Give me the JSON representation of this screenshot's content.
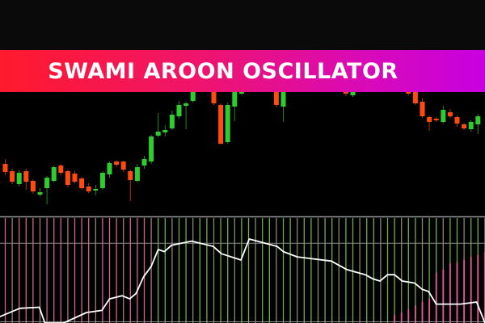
{
  "banner": {
    "title": "SWAMI AROON OSCILLATOR"
  },
  "colors": {
    "bull": "#2ecc2e",
    "bear": "#ff4a10",
    "line": "#ffffff",
    "hist_bull": "#7cc25a",
    "hist_bear": "#e8709f",
    "banner_start": "#ff1a2c",
    "banner_end": "#c800e0"
  },
  "chart_data": [
    {
      "type": "candlestick",
      "title": "",
      "candles": [
        {
          "i": 0,
          "o": 62,
          "c": 52,
          "h": 68,
          "l": 48
        },
        {
          "i": 1,
          "o": 53,
          "c": 40,
          "h": 56,
          "l": 37
        },
        {
          "i": 2,
          "o": 37,
          "c": 51,
          "h": 54,
          "l": 34
        },
        {
          "i": 3,
          "o": 53,
          "c": 40,
          "h": 56,
          "l": 30
        },
        {
          "i": 4,
          "o": 41,
          "c": 28,
          "h": 43,
          "l": 25
        },
        {
          "i": 5,
          "o": 24,
          "c": 27,
          "h": 32,
          "l": 22
        },
        {
          "i": 6,
          "o": 32,
          "c": 45,
          "h": 47,
          "l": 12
        },
        {
          "i": 7,
          "o": 41,
          "c": 58,
          "h": 60,
          "l": 39
        },
        {
          "i": 8,
          "o": 60,
          "c": 51,
          "h": 62,
          "l": 48
        },
        {
          "i": 9,
          "o": 53,
          "c": 36,
          "h": 55,
          "l": 33
        },
        {
          "i": 10,
          "o": 50,
          "c": 40,
          "h": 53,
          "l": 38
        },
        {
          "i": 11,
          "o": 44,
          "c": 32,
          "h": 46,
          "l": 30
        },
        {
          "i": 12,
          "o": 34,
          "c": 28,
          "h": 38,
          "l": 26
        },
        {
          "i": 13,
          "o": 29,
          "c": 31,
          "h": 36,
          "l": 23
        },
        {
          "i": 14,
          "o": 32,
          "c": 51,
          "h": 53,
          "l": 30
        },
        {
          "i": 15,
          "o": 49,
          "c": 63,
          "h": 65,
          "l": 45
        },
        {
          "i": 16,
          "o": 65,
          "c": 61,
          "h": 67,
          "l": 58
        },
        {
          "i": 17,
          "o": 65,
          "c": 55,
          "h": 66,
          "l": 52
        },
        {
          "i": 18,
          "o": 53,
          "c": 42,
          "h": 55,
          "l": 16
        },
        {
          "i": 19,
          "o": 41,
          "c": 58,
          "h": 62,
          "l": 39
        },
        {
          "i": 20,
          "o": 60,
          "c": 68,
          "h": 72,
          "l": 56
        },
        {
          "i": 21,
          "o": 65,
          "c": 96,
          "h": 98,
          "l": 62
        },
        {
          "i": 22,
          "o": 97,
          "c": 102,
          "h": 125,
          "l": 95
        },
        {
          "i": 23,
          "o": 101,
          "c": 104,
          "h": 110,
          "l": 96
        },
        {
          "i": 24,
          "o": 106,
          "c": 123,
          "h": 128,
          "l": 104
        },
        {
          "i": 25,
          "o": 121,
          "c": 135,
          "h": 140,
          "l": 118
        },
        {
          "i": 26,
          "o": 134,
          "c": 137,
          "h": 139,
          "l": 105
        },
        {
          "i": 27,
          "o": 140,
          "c": 151,
          "h": 160,
          "l": 138
        },
        {
          "i": 30,
          "o": 151,
          "c": 137,
          "h": 160,
          "l": 135
        },
        {
          "i": 31,
          "o": 135,
          "c": 87,
          "h": 137,
          "l": 86
        },
        {
          "i": 32,
          "o": 89,
          "c": 135,
          "h": 138,
          "l": 87
        },
        {
          "i": 33,
          "o": 133,
          "c": 151,
          "h": 160,
          "l": 115
        },
        {
          "i": 34,
          "o": 149,
          "c": 151,
          "h": 160,
          "l": 147
        },
        {
          "i": 39,
          "o": 151,
          "c": 135,
          "h": 160,
          "l": 132
        },
        {
          "i": 40,
          "o": 133,
          "c": 151,
          "h": 160,
          "l": 114
        },
        {
          "i": 49,
          "o": 151,
          "c": 149,
          "h": 160,
          "l": 146
        },
        {
          "i": 50,
          "o": 147,
          "c": 151,
          "h": 160,
          "l": 145
        },
        {
          "i": 58,
          "o": 151,
          "c": 149,
          "h": 160,
          "l": 147
        },
        {
          "i": 59,
          "o": 151,
          "c": 137,
          "h": 160,
          "l": 135
        },
        {
          "i": 60,
          "o": 139,
          "c": 121,
          "h": 143,
          "l": 119
        },
        {
          "i": 61,
          "o": 120,
          "c": 114,
          "h": 122,
          "l": 103
        },
        {
          "i": 62,
          "o": 118,
          "c": 116,
          "h": 120,
          "l": 114
        },
        {
          "i": 63,
          "o": 114,
          "c": 129,
          "h": 134,
          "l": 112
        },
        {
          "i": 64,
          "o": 126,
          "c": 121,
          "h": 130,
          "l": 119
        },
        {
          "i": 65,
          "o": 120,
          "c": 112,
          "h": 122,
          "l": 108
        },
        {
          "i": 66,
          "o": 111,
          "c": 106,
          "h": 113,
          "l": 104
        },
        {
          "i": 67,
          "o": 105,
          "c": 114,
          "h": 116,
          "l": 102
        },
        {
          "i": 68,
          "o": 111,
          "c": 121,
          "h": 124,
          "l": 99
        }
      ]
    },
    {
      "type": "line",
      "title": "",
      "ylim": [
        0,
        100
      ],
      "level": 76,
      "histogram_bull_until_index": 22,
      "bars": 70,
      "bear_histogram": [
        {
          "i": 56,
          "v": 8
        },
        {
          "i": 57,
          "v": 10
        },
        {
          "i": 58,
          "v": 13
        },
        {
          "i": 59,
          "v": 17
        },
        {
          "i": 60,
          "v": 20
        },
        {
          "i": 61,
          "v": 23
        },
        {
          "i": 62,
          "v": 48
        },
        {
          "i": 63,
          "v": 51
        },
        {
          "i": 64,
          "v": 57
        },
        {
          "i": 65,
          "v": 58
        },
        {
          "i": 66,
          "v": 60
        },
        {
          "i": 67,
          "v": 63
        },
        {
          "i": 68,
          "v": 65
        },
        {
          "i": 69,
          "v": 68
        }
      ],
      "line": [
        [
          -0.8,
          6
        ],
        [
          2.1,
          14
        ],
        [
          4.9,
          15
        ],
        [
          5.7,
          0
        ],
        [
          8.4,
          0
        ],
        [
          11.7,
          10
        ],
        [
          13.9,
          12
        ],
        [
          15.0,
          23
        ],
        [
          16.8,
          26
        ],
        [
          17.9,
          23
        ],
        [
          18.8,
          28
        ],
        [
          19.9,
          44
        ],
        [
          21.0,
          54
        ],
        [
          22.0,
          70
        ],
        [
          22.9,
          68
        ],
        [
          23.9,
          74
        ],
        [
          26.8,
          78
        ],
        [
          29.9,
          73
        ],
        [
          31.1,
          66
        ],
        [
          33.9,
          60
        ],
        [
          35.1,
          80
        ],
        [
          39.1,
          73
        ],
        [
          40.0,
          68
        ],
        [
          42.0,
          63
        ],
        [
          46.9,
          59
        ],
        [
          49.1,
          51
        ],
        [
          51.8,
          46
        ],
        [
          52.9,
          42
        ],
        [
          53.9,
          40
        ],
        [
          55.0,
          46
        ],
        [
          56.0,
          46
        ],
        [
          57.1,
          40
        ],
        [
          58.9,
          38
        ],
        [
          60.0,
          32
        ],
        [
          60.9,
          30
        ],
        [
          62.0,
          18
        ],
        [
          65.5,
          18
        ],
        [
          67.8,
          20
        ],
        [
          69.0,
          0
        ]
      ]
    }
  ]
}
